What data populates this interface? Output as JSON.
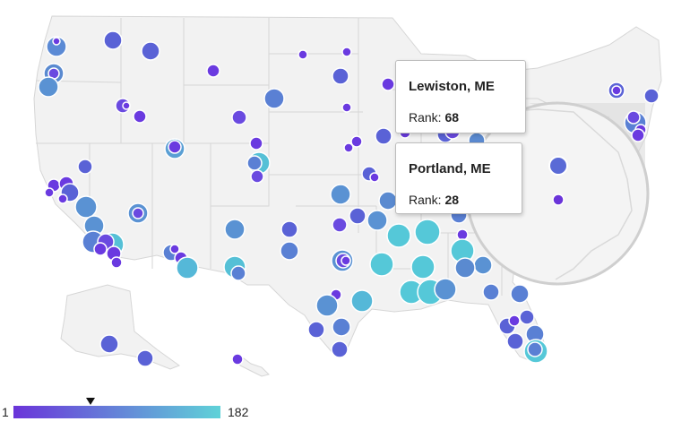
{
  "tooltips": [
    {
      "title": "Lewiston, ME",
      "rank_label": "Rank:",
      "rank_value": "68"
    },
    {
      "title": "Portland, ME",
      "rank_label": "Rank:",
      "rank_value": "28"
    }
  ],
  "legend": {
    "min_label": "1",
    "max_label": "182",
    "min": 1,
    "max": 182,
    "marker_value": 68,
    "color_low": "#6a34d9",
    "color_high": "#5fd2d8"
  },
  "colors": {
    "land": "#f2f2f2",
    "border": "#d6d6d6",
    "marker_stroke": "#ffffff"
  }
}
